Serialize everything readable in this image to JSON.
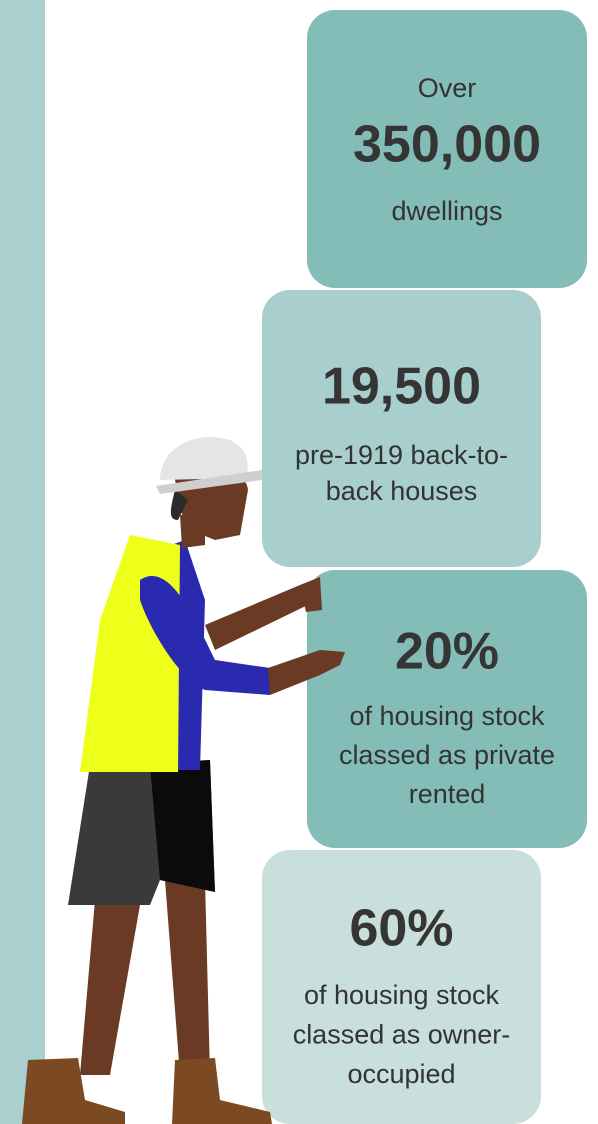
{
  "stats": [
    {
      "prefix": "Over",
      "figure": "350,000",
      "lines": [
        "dwellings"
      ]
    },
    {
      "figure": "19,500",
      "lines": [
        "pre-1919 back-to-",
        "back houses"
      ]
    },
    {
      "figure": "20%",
      "lines": [
        "of housing stock",
        "classed as private",
        "rented"
      ]
    },
    {
      "figure": "60%",
      "lines": [
        "of housing stock",
        "classed as owner-",
        "occupied"
      ]
    }
  ]
}
